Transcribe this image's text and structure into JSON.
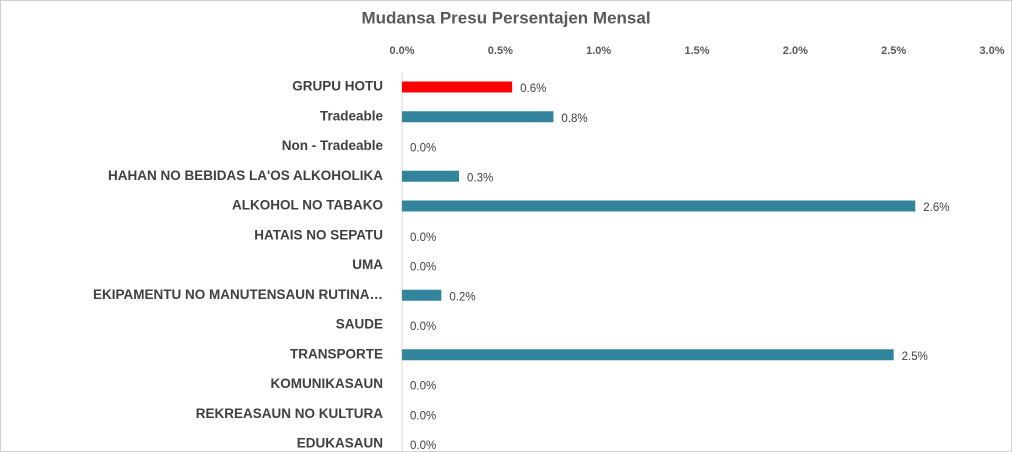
{
  "chart_data": {
    "type": "bar",
    "orientation": "horizontal",
    "title": "Mudansa Presu Persentajen Mensal",
    "categories": [
      "GRUPU HOTU",
      "Tradeable",
      "Non - Tradeable",
      "HAHAN NO BEBIDAS LA'OS ALKOHOLIKA",
      "ALKOHOL NO TABAKO",
      "HATAIS NO SEPATU",
      "UMA",
      "EKIPAMENTU NO MANUTENSAUN RUTINA…",
      "SAUDE",
      "TRANSPORTE",
      "KOMUNIKASAUN",
      "REKREASAUN NO KULTURA",
      "EDUKASAUN"
    ],
    "values": [
      0.56,
      0.77,
      0,
      0.29,
      2.61,
      0,
      0,
      0.2,
      0,
      2.5,
      0,
      0,
      0
    ],
    "value_labels": [
      "0.6%",
      "0.8%",
      "0.0%",
      "0.3%",
      "2.6%",
      "0.0%",
      "0.0%",
      "0.2%",
      "0.0%",
      "2.5%",
      "0.0%",
      "0.0%",
      "0.0%"
    ],
    "colors": [
      "#ff0000",
      "#31849b",
      "#31849b",
      "#31849b",
      "#31849b",
      "#31849b",
      "#31849b",
      "#31849b",
      "#31849b",
      "#31849b",
      "#31849b",
      "#31849b",
      "#31849b"
    ],
    "xlim": [
      0,
      3
    ],
    "xticks": [
      {
        "value": 0,
        "label": "0.0%"
      },
      {
        "value": 0.5,
        "label": "0.5%"
      },
      {
        "value": 1,
        "label": "1.0%"
      },
      {
        "value": 1.5,
        "label": "1.5%"
      },
      {
        "value": 2,
        "label": "2.0%"
      },
      {
        "value": 2.5,
        "label": "2.5%"
      },
      {
        "value": 3,
        "label": "3.0%"
      }
    ]
  }
}
